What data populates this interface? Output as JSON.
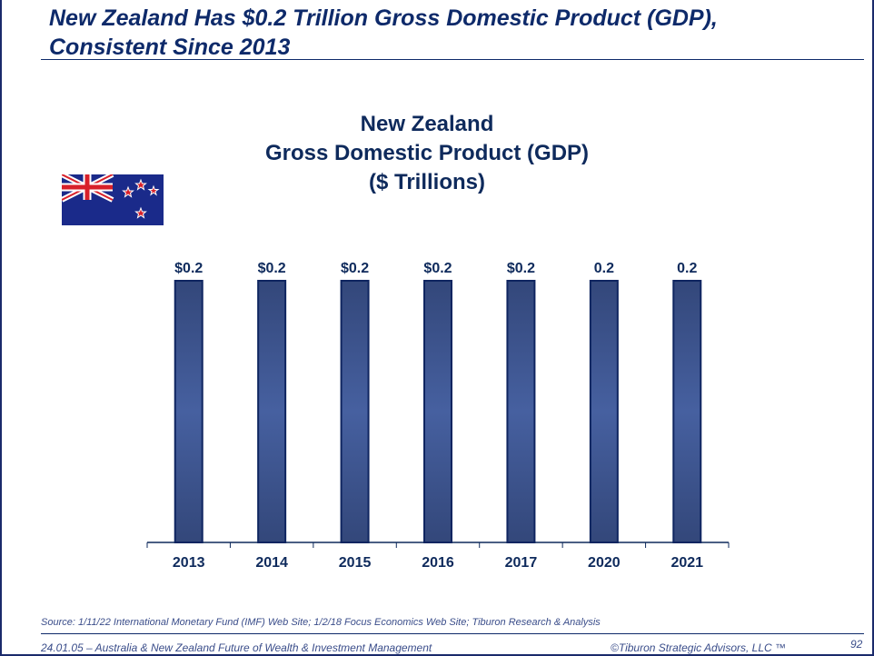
{
  "slide": {
    "title_line1": "New Zealand Has $0.2 Trillion Gross Domestic Product (GDP),",
    "title_line2": "Consistent Since 2013",
    "source": "Source:   1/11/22 International Monetary Fund (IMF) Web Site; 1/2/18 Focus Economics Web Site; Tiburon Research & Analysis",
    "footer_left": "24.01.05 – Australia & New Zealand Future of Wealth & Investment Management",
    "footer_copyright": "©Tiburon Strategic Advisors, LLC ™",
    "page_number": "92"
  },
  "colors": {
    "navy": "#0e2a5c",
    "bar_edge": "#0f2560",
    "bar_light": "#4660a0",
    "bar_dark": "#33477a"
  },
  "chart_data": {
    "type": "bar",
    "title": [
      "New Zealand",
      "Gross Domestic Product (GDP)",
      "($ Trillions)"
    ],
    "categories": [
      "2013",
      "2014",
      "2015",
      "2016",
      "2017",
      "2020",
      "2021"
    ],
    "values": [
      0.2,
      0.2,
      0.2,
      0.2,
      0.2,
      0.2,
      0.2
    ],
    "data_labels": [
      "$0.2",
      "$0.2",
      "$0.2",
      "$0.2",
      "$0.2",
      "0.2",
      "0.2"
    ],
    "xlabel": "",
    "ylabel": "",
    "ylim": [
      0,
      0.2
    ],
    "grid": false
  }
}
